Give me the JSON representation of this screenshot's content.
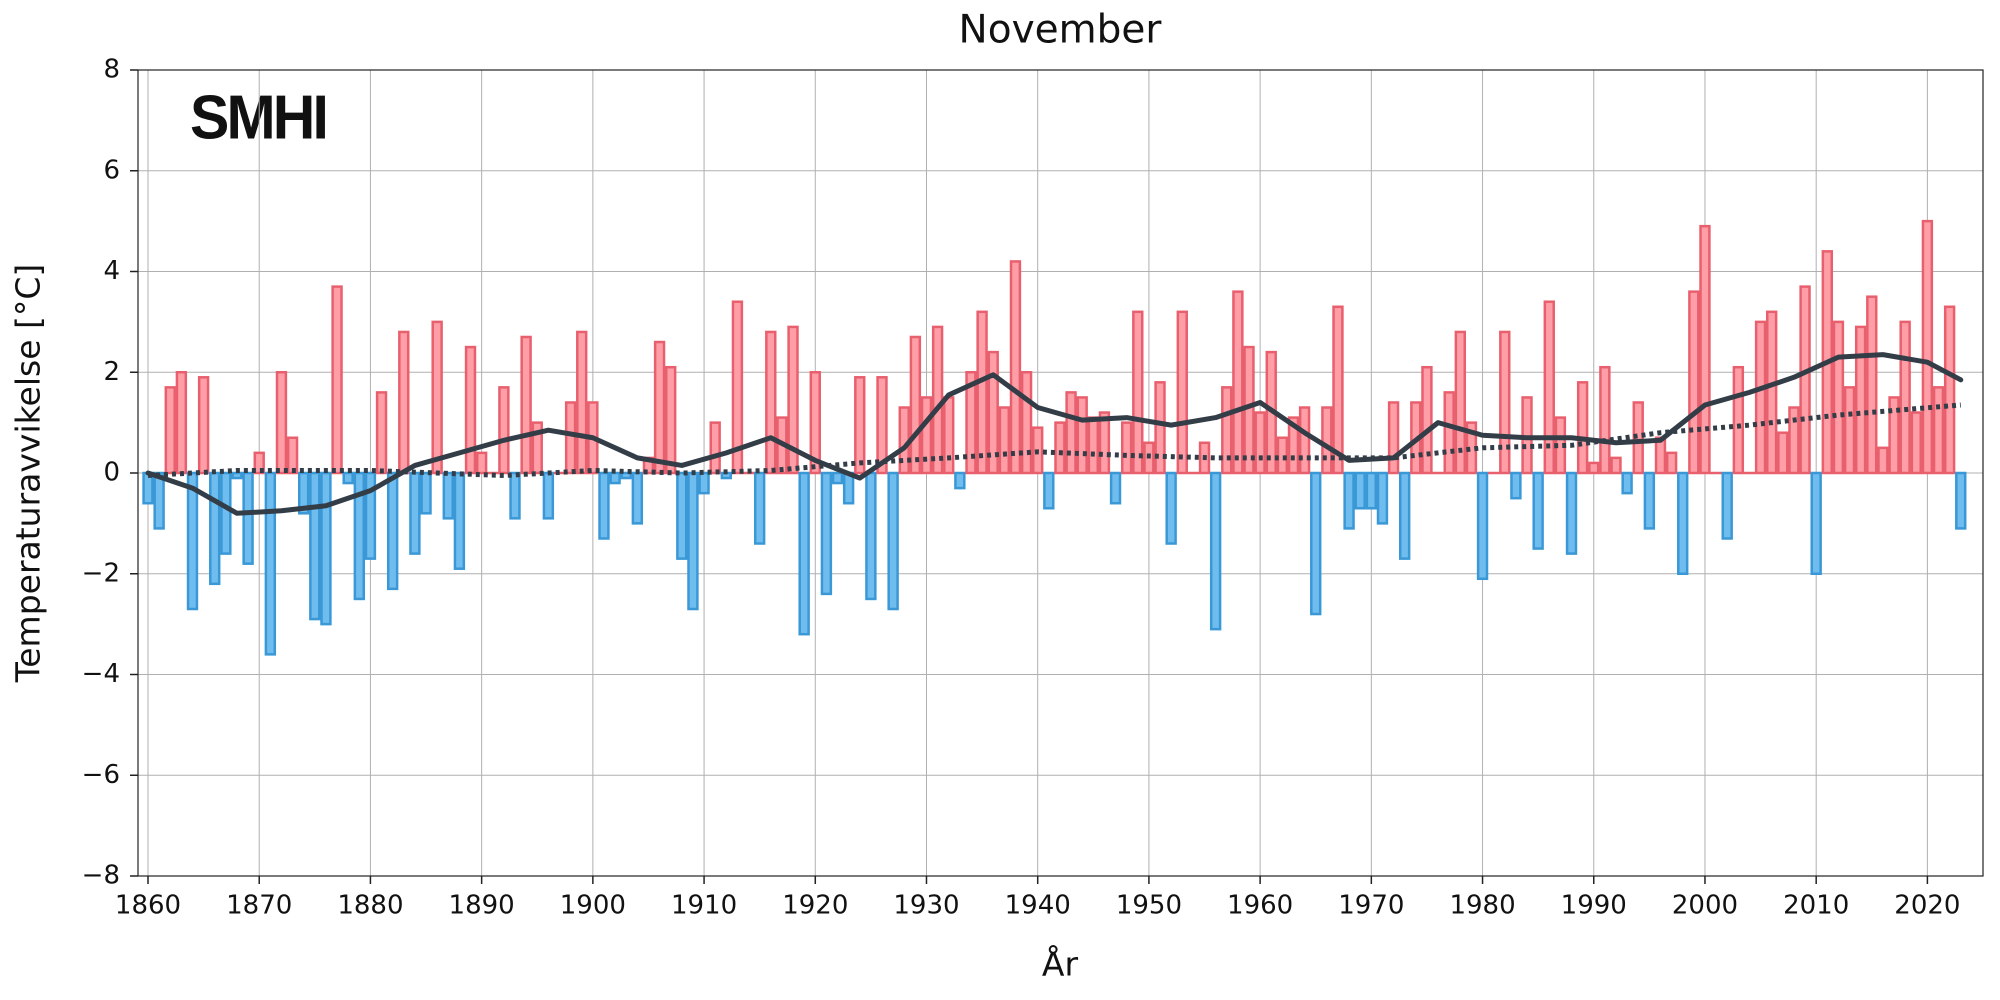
{
  "logo": "SMHI",
  "chart_data": {
    "type": "bar",
    "title": "November",
    "xlabel": "År",
    "ylabel": "Temperaturavvikelse [°C]",
    "x": [
      1860,
      1861,
      1862,
      1863,
      1864,
      1865,
      1866,
      1867,
      1868,
      1869,
      1870,
      1871,
      1872,
      1873,
      1874,
      1875,
      1876,
      1877,
      1878,
      1879,
      1880,
      1881,
      1882,
      1883,
      1884,
      1885,
      1886,
      1887,
      1888,
      1889,
      1890,
      1891,
      1892,
      1893,
      1894,
      1895,
      1896,
      1897,
      1898,
      1899,
      1900,
      1901,
      1902,
      1903,
      1904,
      1905,
      1906,
      1907,
      1908,
      1909,
      1910,
      1911,
      1912,
      1913,
      1914,
      1915,
      1916,
      1917,
      1918,
      1919,
      1920,
      1921,
      1922,
      1923,
      1924,
      1925,
      1926,
      1927,
      1928,
      1929,
      1930,
      1931,
      1932,
      1933,
      1934,
      1935,
      1936,
      1937,
      1938,
      1939,
      1940,
      1941,
      1942,
      1943,
      1944,
      1945,
      1946,
      1947,
      1948,
      1949,
      1950,
      1951,
      1952,
      1953,
      1954,
      1955,
      1956,
      1957,
      1958,
      1959,
      1960,
      1961,
      1962,
      1963,
      1964,
      1965,
      1966,
      1967,
      1968,
      1969,
      1970,
      1971,
      1972,
      1973,
      1974,
      1975,
      1976,
      1977,
      1978,
      1979,
      1980,
      1981,
      1982,
      1983,
      1984,
      1985,
      1986,
      1987,
      1988,
      1989,
      1990,
      1991,
      1992,
      1993,
      1994,
      1995,
      1996,
      1997,
      1998,
      1999,
      2000,
      2001,
      2002,
      2003,
      2004,
      2005,
      2006,
      2007,
      2008,
      2009,
      2010,
      2011,
      2012,
      2013,
      2014,
      2015,
      2016,
      2017,
      2018,
      2019,
      2020,
      2021,
      2022,
      2023
    ],
    "values": [
      -0.6,
      -1.1,
      1.7,
      2.0,
      -2.7,
      1.9,
      -2.2,
      -1.6,
      -0.1,
      -1.8,
      0.4,
      -3.6,
      2.0,
      0.7,
      -0.8,
      -2.9,
      -3.0,
      3.7,
      -0.2,
      -2.5,
      -1.7,
      1.6,
      -2.3,
      2.8,
      -1.6,
      -0.8,
      3.0,
      -0.9,
      -1.9,
      2.5,
      0.4,
      0.0,
      1.7,
      -0.9,
      2.7,
      1.0,
      -0.9,
      0.0,
      1.4,
      2.8,
      1.4,
      -1.3,
      -0.2,
      -0.1,
      -1.0,
      0.3,
      2.6,
      2.1,
      -1.7,
      -2.7,
      -0.4,
      1.0,
      -0.1,
      3.4,
      0.0,
      -1.4,
      2.8,
      1.1,
      2.9,
      -3.2,
      2.0,
      -2.4,
      -0.2,
      -0.6,
      1.9,
      -2.5,
      1.9,
      -2.7,
      1.3,
      2.7,
      1.5,
      2.9,
      1.5,
      -0.3,
      2.0,
      3.2,
      2.4,
      1.3,
      4.2,
      2.0,
      0.9,
      -0.7,
      1.0,
      1.6,
      1.5,
      1.1,
      1.2,
      -0.6,
      1.0,
      3.2,
      0.6,
      1.8,
      -1.4,
      3.2,
      0.0,
      0.6,
      -3.1,
      1.7,
      3.6,
      2.5,
      1.2,
      2.4,
      0.7,
      1.1,
      1.3,
      -2.8,
      1.3,
      3.3,
      -1.1,
      -0.7,
      -0.7,
      -1.0,
      1.4,
      -1.7,
      1.4,
      2.1,
      0.0,
      1.6,
      2.8,
      1.0,
      -2.1,
      0.0,
      2.8,
      -0.5,
      1.5,
      -1.5,
      3.4,
      1.1,
      -1.6,
      1.8,
      0.2,
      2.1,
      0.3,
      -0.4,
      1.4,
      -1.1,
      0.7,
      0.4,
      -2.0,
      3.6,
      4.9,
      0.0,
      -1.3,
      2.1,
      0.0,
      3.0,
      3.2,
      0.8,
      1.3,
      3.7,
      -2.0,
      4.4,
      3.0,
      1.7,
      2.9,
      3.5,
      0.5,
      1.5,
      3.0,
      1.2,
      5.0,
      1.7,
      3.3,
      -1.1
    ],
    "positive_color": "#ff9ea6",
    "negative_color": "#6fbdee",
    "overlays": [
      {
        "type": "line",
        "style": "solid",
        "color": "#333d47",
        "x": [
          1860,
          1864,
          1868,
          1872,
          1876,
          1880,
          1884,
          1888,
          1892,
          1896,
          1900,
          1904,
          1908,
          1912,
          1916,
          1920,
          1924,
          1928,
          1932,
          1936,
          1940,
          1944,
          1948,
          1952,
          1956,
          1960,
          1964,
          1968,
          1972,
          1976,
          1980,
          1984,
          1988,
          1992,
          1996,
          2000,
          2004,
          2008,
          2012,
          2016,
          2020,
          2023
        ],
        "values": [
          0.0,
          -0.3,
          -0.8,
          -0.75,
          -0.65,
          -0.35,
          0.15,
          0.4,
          0.65,
          0.85,
          0.7,
          0.3,
          0.15,
          0.4,
          0.7,
          0.25,
          -0.1,
          0.5,
          1.55,
          1.95,
          1.3,
          1.05,
          1.1,
          0.95,
          1.1,
          1.4,
          0.8,
          0.25,
          0.3,
          1.0,
          0.75,
          0.7,
          0.7,
          0.6,
          0.65,
          1.35,
          1.6,
          1.9,
          2.3,
          2.35,
          2.2,
          1.85
        ]
      },
      {
        "type": "line",
        "style": "dotted",
        "color": "#333d47",
        "x": [
          1860,
          1868,
          1880,
          1892,
          1900,
          1908,
          1916,
          1924,
          1932,
          1940,
          1948,
          1956,
          1964,
          1972,
          1980,
          1988,
          1996,
          2004,
          2012,
          2023
        ],
        "values": [
          -0.05,
          0.05,
          0.05,
          -0.05,
          0.05,
          0.0,
          0.05,
          0.2,
          0.3,
          0.42,
          0.35,
          0.3,
          0.3,
          0.3,
          0.5,
          0.55,
          0.8,
          0.95,
          1.15,
          1.35
        ]
      }
    ],
    "xlim": [
      1859.1,
      2025.0
    ],
    "ylim": [
      -8,
      8
    ],
    "xticks": [
      1860,
      1870,
      1880,
      1890,
      1900,
      1910,
      1920,
      1930,
      1940,
      1950,
      1960,
      1970,
      1980,
      1990,
      2000,
      2010,
      2020
    ],
    "yticks": [
      {
        "value": -8,
        "label": "−8"
      },
      {
        "value": -6,
        "label": "−6"
      },
      {
        "value": -4,
        "label": "−4"
      },
      {
        "value": -2,
        "label": "−2"
      },
      0,
      2,
      4,
      6,
      8
    ],
    "grid": true
  }
}
